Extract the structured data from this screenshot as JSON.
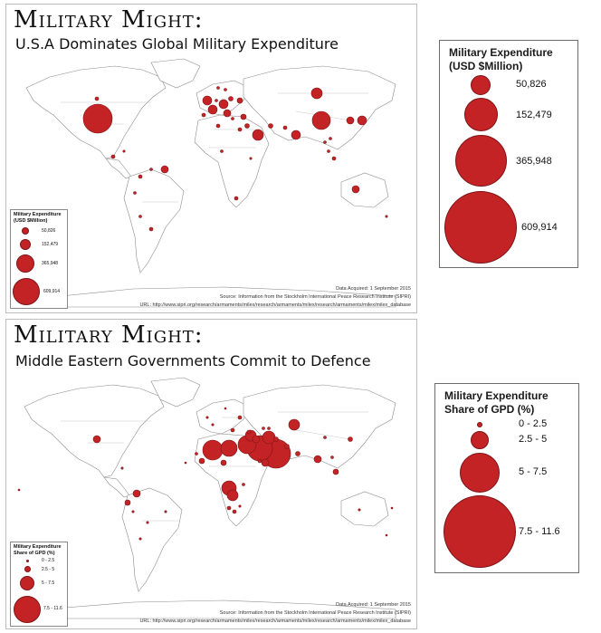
{
  "maps": [
    {
      "title": "Military Might:",
      "subtitle": "U.S.A Dominates Global Military Expenditure",
      "legend_title_line1": "Military Expenditure",
      "legend_title_line2": "(USD $Million)",
      "mini_legend_line1": "Military Expenditure",
      "mini_legend_line2": "(USD $Million)",
      "legend_items": [
        "50,826",
        "152,479",
        "365,948",
        "609,914"
      ],
      "credit_line1": "Data Acquired: 1 September 2015",
      "credit_line2": "Source: Information from the Stockholm International Peace Research Institute (SIPRI)",
      "credit_line3": "URL: http://www.sipri.org/research/armaments/milex/research/armaments/milex/research/armaments/milex/milex_database",
      "bubble_color": "#c42326"
    },
    {
      "title": "Military Might:",
      "subtitle": "Middle Eastern Governments Commit to Defence",
      "legend_title_line1": "Military Expenditure",
      "legend_title_line2": "Share of GPD (%)",
      "mini_legend_line1": "Military Expenditure",
      "mini_legend_line2": "Share of GPD (%)",
      "legend_items": [
        "0 - 2.5",
        "2.5 - 5",
        "5 - 7.5",
        "7.5 - 11.6"
      ],
      "credit_line1": "Data Acquired: 1 September 2015",
      "credit_line2": "Source: Information from the Stockholm International Peace Research Institute (SIPRI)",
      "credit_line3": "URL: http://www.sipri.org/research/armaments/milex/research/armaments/milex/research/armaments/milex/milex_database",
      "bubble_color": "#c42326"
    }
  ]
}
